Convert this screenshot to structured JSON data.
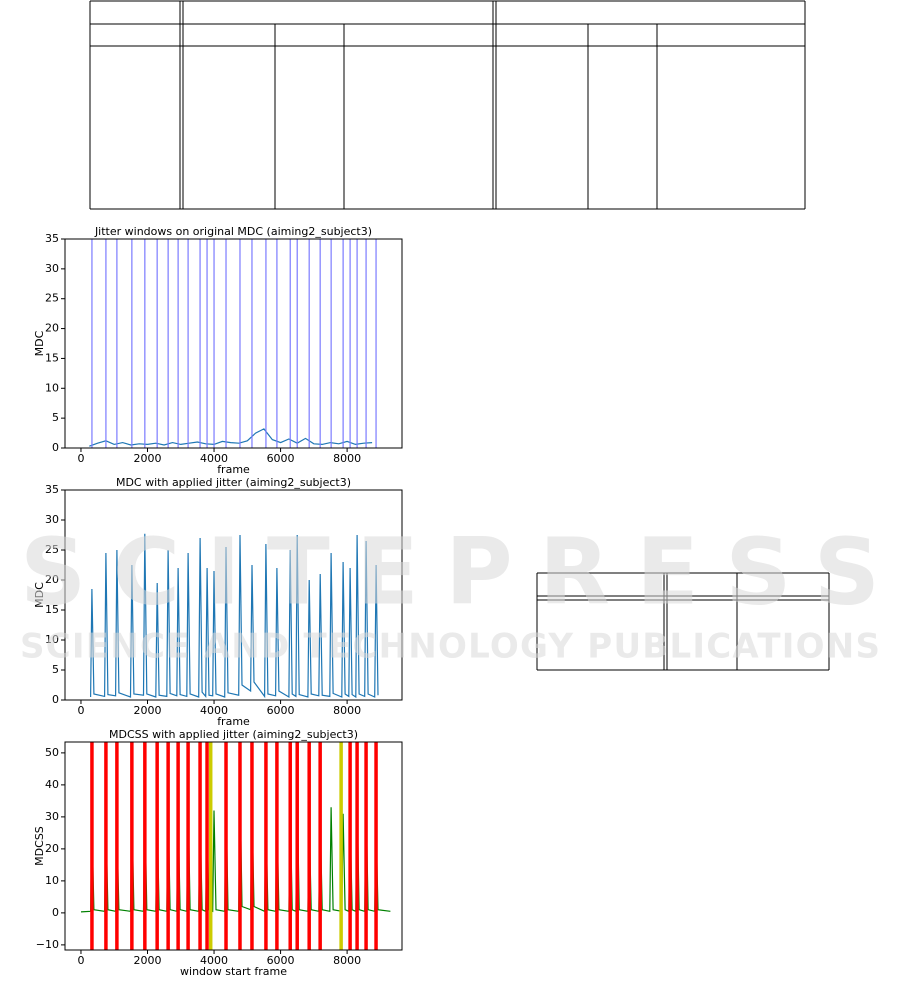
{
  "watermark": {
    "title": "SCITEPRESS",
    "subtitle": "SCIENCE AND TECHNOLOGY PUBLICATIONS"
  },
  "chart_data": [
    {
      "type": "line",
      "title": "Jitter windows on original MDC (aiming2_subject3)",
      "xlabel": "frame",
      "ylabel": "MDC",
      "x": [
        250,
        500,
        750,
        1000,
        1250,
        1500,
        1750,
        2000,
        2250,
        2500,
        2750,
        3000,
        3250,
        3500,
        3750,
        4000,
        4250,
        4500,
        4750,
        5000,
        5250,
        5500,
        5750,
        6000,
        6250,
        6500,
        6750,
        7000,
        7250,
        7500,
        7750,
        8000,
        8250,
        8500,
        8750
      ],
      "values": [
        0.3,
        0.8,
        1.2,
        0.6,
        0.9,
        0.5,
        0.7,
        0.6,
        0.8,
        0.5,
        0.9,
        0.6,
        0.8,
        1,
        0.7,
        0.6,
        1.1,
        0.9,
        0.8,
        1.2,
        2.5,
        3.2,
        1.4,
        0.9,
        1.5,
        0.8,
        1.6,
        0.7,
        0.6,
        0.9,
        0.7,
        1.1,
        0.6,
        0.8,
        0.9
      ],
      "color": "#1f77b4",
      "vlines": [
        {
          "color": "#7b7bff",
          "x": [
            330,
            750,
            1080,
            1530,
            1920,
            2290,
            2620,
            2920,
            3220,
            3580,
            3790,
            4000,
            4360,
            4780,
            5140,
            5560,
            5890,
            6290,
            6500,
            6860,
            7190,
            7520,
            7880,
            8090,
            8300,
            8570,
            8870
          ]
        }
      ],
      "xlim": [
        -480,
        9650
      ],
      "ylim": [
        0,
        35
      ],
      "xticks": [
        0,
        2000,
        4000,
        6000,
        8000
      ],
      "yticks": [
        0,
        5,
        10,
        15,
        20,
        25,
        30,
        35
      ]
    },
    {
      "type": "line",
      "title": "MDC with applied jitter (aiming2_subject3)",
      "xlabel": "frame",
      "ylabel": "MDC",
      "x": [
        290,
        330,
        390,
        710,
        750,
        810,
        1040,
        1080,
        1140,
        1490,
        1530,
        1590,
        1880,
        1920,
        1980,
        2250,
        2290,
        2350,
        2580,
        2620,
        2680,
        2880,
        2920,
        2980,
        3180,
        3220,
        3280,
        3540,
        3580,
        3640,
        3750,
        3790,
        3850,
        3960,
        4000,
        4060,
        4320,
        4360,
        4420,
        4740,
        4780,
        4840,
        5100,
        5140,
        5200,
        5520,
        5560,
        5620,
        5850,
        5890,
        5950,
        6250,
        6290,
        6350,
        6460,
        6500,
        6560,
        6820,
        6860,
        6920,
        7150,
        7190,
        7250,
        7480,
        7520,
        7580,
        7840,
        7880,
        7940,
        8050,
        8090,
        8150,
        8260,
        8300,
        8360,
        8530,
        8570,
        8630,
        8830,
        8870,
        8930
      ],
      "values": [
        0.5,
        18.5,
        1,
        0.6,
        24.5,
        0.9,
        0.7,
        25,
        1.2,
        0.5,
        22.5,
        1,
        0.8,
        27.7,
        1,
        0.5,
        19.5,
        0.8,
        0.6,
        25,
        1.1,
        0.7,
        22,
        0.9,
        0.6,
        24.5,
        1,
        0.5,
        27,
        1.3,
        0.6,
        22,
        0.8,
        0.7,
        21.5,
        1,
        0.5,
        25.5,
        1.2,
        0.8,
        27.5,
        2.5,
        1.5,
        22.5,
        3,
        0.6,
        26,
        1,
        0.7,
        22,
        1.5,
        0.5,
        25,
        1,
        0.6,
        27.5,
        0.9,
        0.5,
        20,
        1,
        0.7,
        21,
        0.8,
        0.6,
        24.5,
        1.1,
        0.5,
        23,
        1,
        0.6,
        22,
        0.9,
        0.5,
        27.5,
        1,
        0.6,
        26.5,
        1,
        0.5,
        22.5,
        0.8
      ],
      "color": "#1f77b4",
      "vlines": [],
      "xlim": [
        -480,
        9650
      ],
      "ylim": [
        0,
        35
      ],
      "xticks": [
        0,
        2000,
        4000,
        6000,
        8000
      ],
      "yticks": [
        0,
        5,
        10,
        15,
        20,
        25,
        30,
        35
      ]
    },
    {
      "type": "line",
      "title": "MDCSS with applied jitter (aiming2_subject3)",
      "xlabel": "window start frame",
      "ylabel": "MDCSS",
      "x": [
        0,
        290,
        330,
        390,
        710,
        750,
        810,
        1040,
        1080,
        1140,
        1490,
        1530,
        1590,
        1880,
        1920,
        1980,
        2250,
        2290,
        2350,
        2580,
        2620,
        2680,
        2880,
        2920,
        2980,
        3180,
        3220,
        3280,
        3540,
        3580,
        3640,
        3750,
        3790,
        3850,
        3960,
        4000,
        4060,
        4320,
        4360,
        4420,
        4740,
        4780,
        4840,
        5100,
        5140,
        5200,
        5520,
        5560,
        5620,
        5850,
        5890,
        5950,
        6250,
        6290,
        6350,
        6460,
        6500,
        6560,
        6820,
        6860,
        6920,
        7150,
        7190,
        7250,
        7480,
        7520,
        7580,
        7840,
        7880,
        7940,
        8050,
        8090,
        8150,
        8260,
        8300,
        8360,
        8530,
        8570,
        8630,
        8830,
        8870,
        8930,
        9300
      ],
      "values": [
        0.3,
        0.5,
        28,
        1,
        0.5,
        30,
        1,
        0.5,
        27,
        1,
        0.5,
        32,
        1,
        0.5,
        34,
        1,
        0.5,
        29,
        1,
        0.5,
        33,
        1,
        0.5,
        31,
        1,
        0.5,
        35,
        1,
        0.5,
        30,
        1,
        0.5,
        28,
        1,
        0.5,
        32,
        1,
        0.5,
        36,
        1,
        0.5,
        40,
        2,
        1,
        33,
        2,
        0.5,
        30,
        1,
        0.5,
        31,
        1,
        0.5,
        34,
        1,
        0.5,
        38,
        1,
        0.5,
        29,
        1,
        0.5,
        30,
        1,
        0.5,
        33,
        1,
        0.5,
        31,
        1,
        0.5,
        30,
        1,
        0.5,
        36,
        1,
        0.5,
        35,
        1,
        0.5,
        27,
        1,
        0.5
      ],
      "color": "#008000",
      "vlines": [
        {
          "color": "#ff0000",
          "x": [
            330,
            750,
            1080,
            1530,
            1920,
            2290,
            2620,
            2920,
            3220,
            3580,
            3790,
            4360,
            4780,
            5140,
            5560,
            5890,
            6290,
            6500,
            6860,
            7190,
            8090,
            8300,
            8570,
            8870
          ]
        },
        {
          "color": "#cccc00",
          "x": [
            3900,
            7820
          ]
        }
      ],
      "xlim": [
        -480,
        9650
      ],
      "ylim": [
        -11.6,
        53.4
      ],
      "xticks": [
        0,
        2000,
        4000,
        6000,
        8000
      ],
      "yticks": [
        {
          "value": -10,
          "label": "−10"
        },
        0,
        10,
        20,
        30,
        40,
        50
      ]
    }
  ]
}
